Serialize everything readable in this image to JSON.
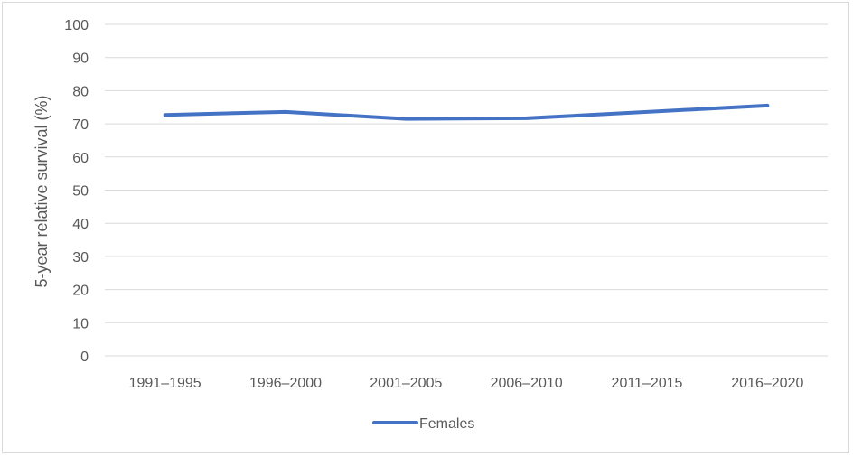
{
  "chart_data": {
    "type": "line",
    "title": "",
    "xlabel": "",
    "ylabel": "5-year relative survival (%)",
    "categories": [
      "1991–1995",
      "1996–2000",
      "2001–2005",
      "2006–2010",
      "2011–2015",
      "2016–2020"
    ],
    "series": [
      {
        "name": "Females",
        "values": [
          72.7,
          73.6,
          71.5,
          71.7,
          73.6,
          75.5
        ],
        "color": "#4472C4"
      }
    ],
    "ylim": [
      0,
      100
    ],
    "yticks": [
      0,
      10,
      20,
      30,
      40,
      50,
      60,
      70,
      80,
      90,
      100
    ],
    "grid": true,
    "legend_position": "bottom"
  }
}
